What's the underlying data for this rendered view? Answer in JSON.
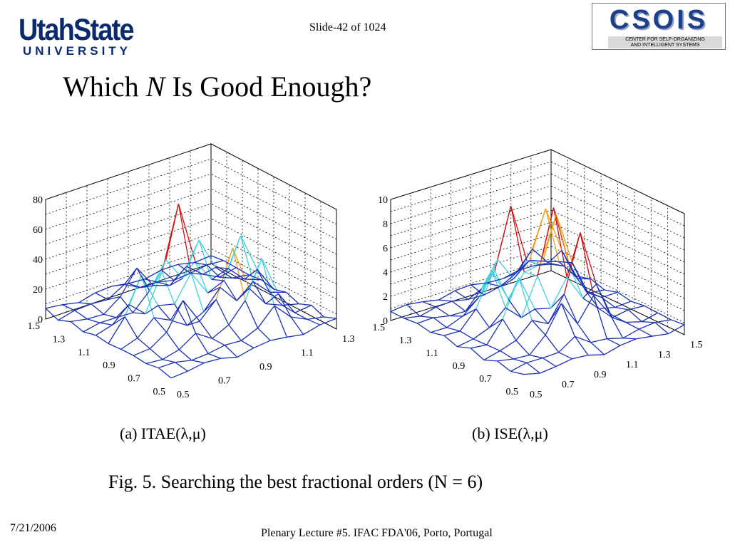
{
  "header": {
    "logo_left_line1": "UtahState",
    "logo_left_line2": "UNIVERSITY",
    "slide_counter": "Slide-42 of 1024",
    "logo_right_word": "CSOIS",
    "logo_right_sub1": "CENTER FOR SELF-ORGANIZING",
    "logo_right_sub2": "AND INTELLIGENT SYSTEMS"
  },
  "title": {
    "prefix": "Which ",
    "italic": "N",
    "suffix": " Is Good Enough?"
  },
  "figure": {
    "plot_a": {
      "z_ticks": [
        "80",
        "60",
        "40",
        "20",
        "0"
      ],
      "left_ticks": [
        "1.5",
        "1.3",
        "1.1",
        "0.9",
        "0.7",
        "0.5"
      ],
      "right_ticks": [
        "0.5",
        "0.7",
        "0.9",
        "1.1",
        "1.3"
      ],
      "caption": "(a)  ITAE(λ,μ)"
    },
    "plot_b": {
      "z_ticks": [
        "10",
        "8",
        "6",
        "4",
        "2",
        "0"
      ],
      "left_ticks": [
        "1.5",
        "1.3",
        "1.1",
        "0.9",
        "0.7",
        "0.5"
      ],
      "right_ticks": [
        "0.5",
        "0.7",
        "0.9",
        "1.1",
        "1.3",
        "1.5"
      ],
      "caption": "(b)  ISE(λ,μ)"
    },
    "caption": "Fig. 5.    Searching the best fractional orders (N = 6)"
  },
  "footer": {
    "date": "7/21/2006",
    "text": "Plenary Lecture #5. IFAC FDA'06, Porto, Portugal"
  },
  "colors": {
    "mesh_low": "#1a2fb5",
    "mesh_mid": "#3fd0e0",
    "mesh_high": "#f0a020",
    "mesh_peak": "#d01010",
    "logo_blue": "#0a2a6e"
  }
}
